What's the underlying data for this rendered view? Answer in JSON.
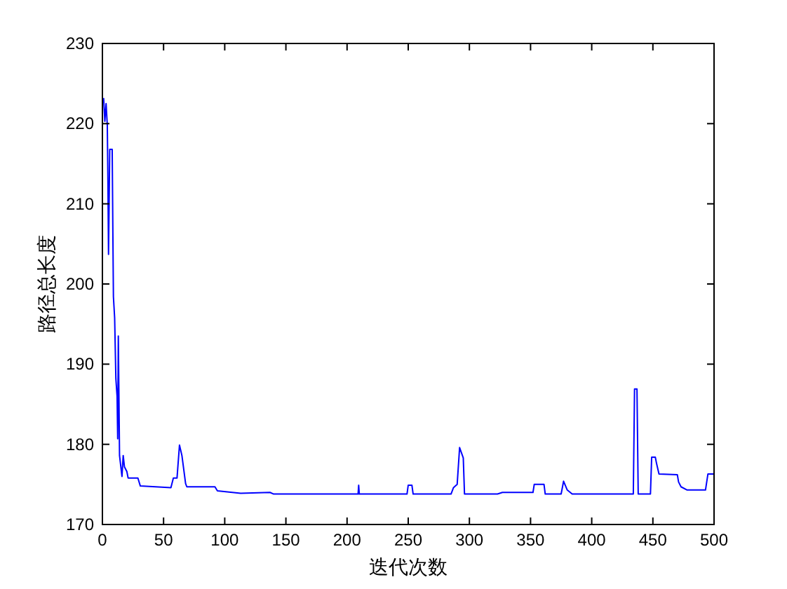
{
  "chart_data": {
    "type": "line",
    "xlabel": "迭代次数",
    "ylabel": "路径总长度",
    "xlim": [
      0,
      500
    ],
    "ylim": [
      170,
      230
    ],
    "xticks": [
      0,
      50,
      100,
      150,
      200,
      250,
      300,
      350,
      400,
      450,
      500
    ],
    "yticks": [
      170,
      180,
      190,
      200,
      210,
      220,
      230
    ],
    "grid": false,
    "line_style": "solid",
    "series": [
      {
        "color": "#0000ff",
        "x": [
          1,
          2,
          3,
          4,
          4.5,
          5,
          5.5,
          6,
          8,
          8.5,
          9,
          10,
          11,
          12,
          12.5,
          13,
          14,
          16,
          17,
          18,
          20,
          21,
          29,
          31,
          56,
          58,
          61,
          63,
          65,
          68,
          69,
          92,
          94,
          113,
          137,
          140,
          209,
          209.5,
          210,
          249,
          250,
          253,
          254,
          285,
          287,
          290,
          292,
          295,
          296,
          323,
          327,
          352,
          353,
          361,
          362,
          375,
          377,
          380,
          384,
          394,
          434,
          435,
          437,
          438,
          439,
          448,
          449,
          452,
          453,
          455,
          470,
          471,
          473,
          478,
          493,
          495,
          500
        ],
        "values": [
          223.2,
          220.3,
          222.5,
          219.8,
          213,
          203.7,
          210.4,
          216.8,
          216.8,
          207.4,
          198.4,
          195.8,
          188.2,
          186,
          180.7,
          193.5,
          178.6,
          176,
          178.6,
          177.2,
          176.6,
          175.8,
          175.8,
          174.8,
          174.6,
          175.8,
          175.8,
          179.9,
          178.6,
          175.1,
          174.7,
          174.7,
          174.2,
          173.9,
          174,
          173.8,
          173.8,
          174.9,
          173.8,
          173.8,
          174.9,
          174.9,
          173.8,
          173.8,
          174.6,
          175,
          179.6,
          178.3,
          173.8,
          173.8,
          174,
          174,
          175,
          175,
          173.8,
          173.8,
          175.4,
          174.3,
          173.8,
          173.8,
          173.8,
          186.9,
          186.9,
          173.8,
          173.8,
          173.8,
          178.4,
          178.4,
          177.6,
          176.3,
          176.2,
          175.3,
          174.7,
          174.3,
          174.3,
          176.3,
          176.3
        ]
      }
    ]
  }
}
